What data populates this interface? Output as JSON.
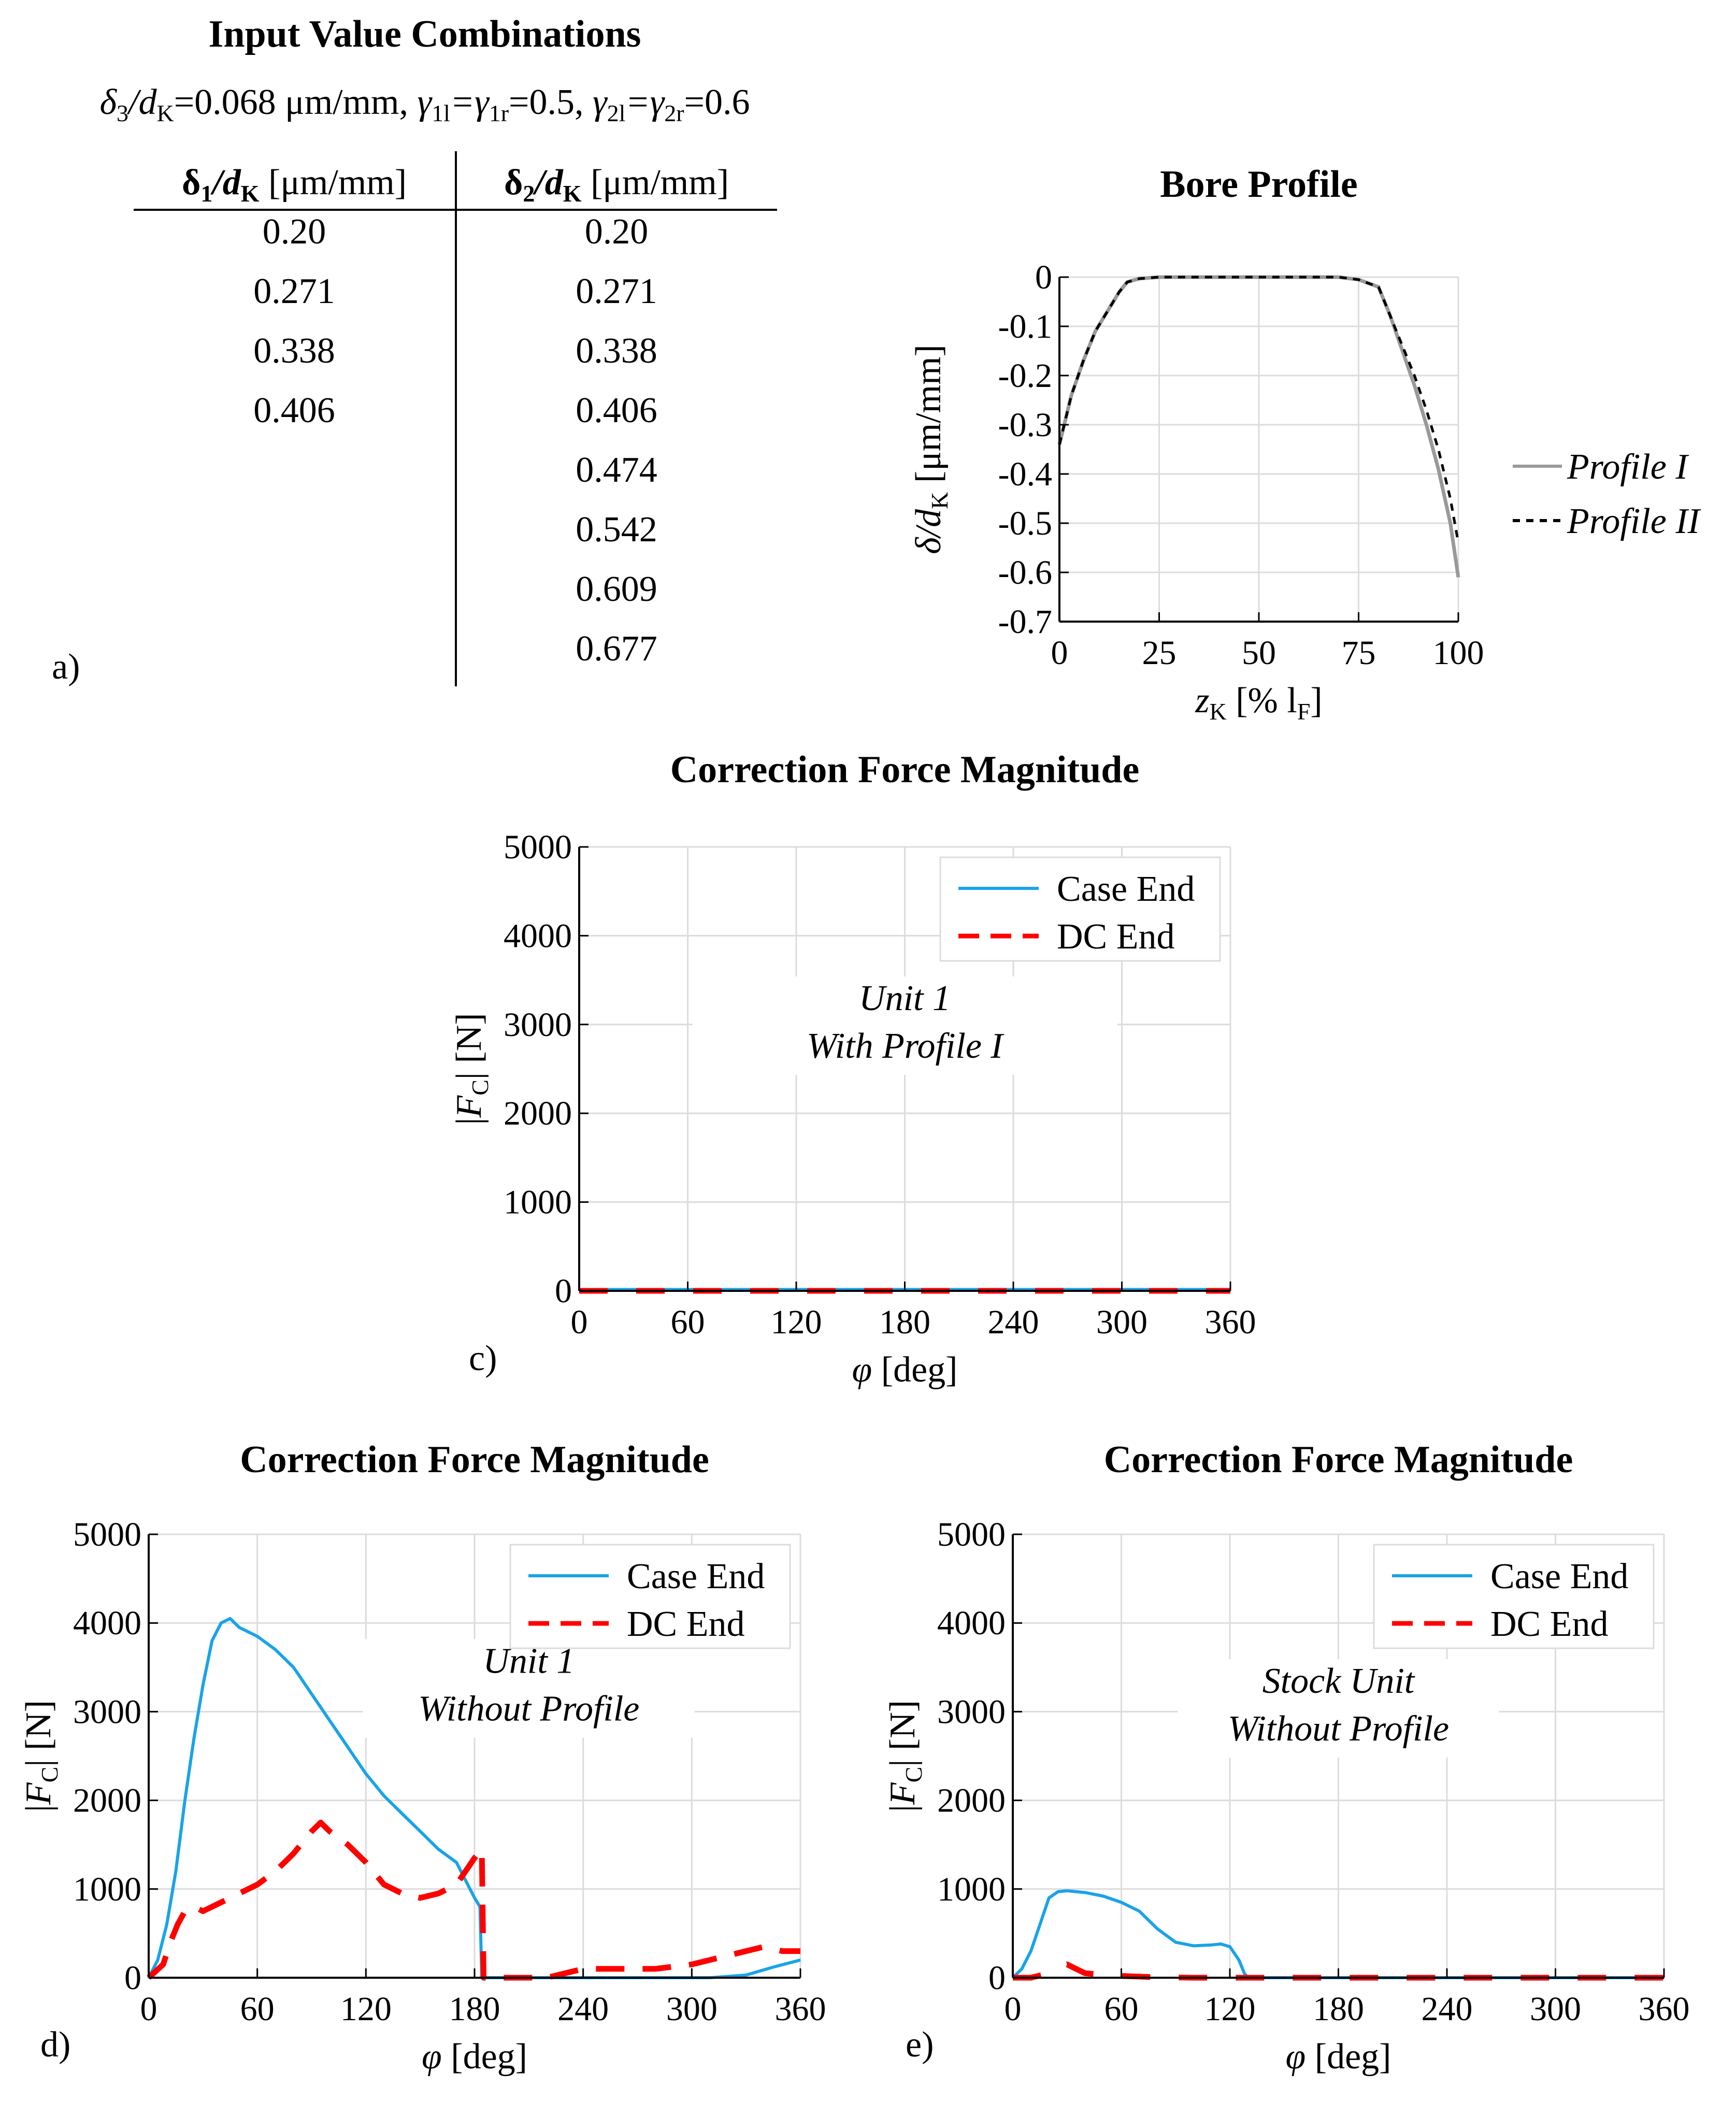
{
  "table": {
    "title": "Input Value Combinations",
    "params": {
      "d3_sym": "δ",
      "d3_sub": "3",
      "d3_mid": "/d",
      "d3_sub2": "K",
      "d3_val": "=0.068 μm/mm, ",
      "g1_a": "γ",
      "g1_a_sub": "1l",
      "g1_eq": "=γ",
      "g1_b_sub": "1r",
      "g1_val": "=0.5, ",
      "g2_a": "γ",
      "g2_a_sub": "2l",
      "g2_eq": "=γ",
      "g2_b_sub": "2r",
      "g2_val": "=0.6"
    },
    "col1_header": {
      "main": "δ",
      "sub": "1",
      "mid": "/d",
      "sub2": "K",
      "unit": " [μm/mm]"
    },
    "col2_header": {
      "main": "δ",
      "sub": "2",
      "mid": "/d",
      "sub2": "K",
      "unit": " [μm/mm]"
    },
    "col1": [
      "0.20",
      "0.271",
      "0.338",
      "0.406"
    ],
    "col2": [
      "0.20",
      "0.271",
      "0.338",
      "0.406",
      "0.474",
      "0.542",
      "0.609",
      "0.677"
    ],
    "panel_label": "a)"
  },
  "chart_data": [
    {
      "id": "bore",
      "type": "line",
      "title": "Bore Profile",
      "xlabel": {
        "main": "z",
        "sub": "K",
        "rest": " [% l",
        "sub2": "F",
        "end": "]"
      },
      "ylabel": {
        "main": "δ/d",
        "sub": "K",
        "rest": " [μm/mm]"
      },
      "xlim": [
        0,
        100
      ],
      "ylim": [
        -0.7,
        0
      ],
      "xticks": [
        0,
        25,
        50,
        75,
        100
      ],
      "yticks": [
        0,
        -0.1,
        -0.2,
        -0.3,
        -0.4,
        -0.5,
        -0.6,
        -0.7
      ],
      "series": [
        {
          "name": "Profile I",
          "color": "#999999",
          "dash": "solid",
          "x": [
            0,
            3,
            6,
            9,
            12,
            15,
            17,
            20,
            25,
            30,
            50,
            70,
            75,
            80,
            83,
            86,
            89,
            92,
            95,
            98,
            100
          ],
          "y": [
            -0.34,
            -0.24,
            -0.17,
            -0.11,
            -0.07,
            -0.03,
            -0.01,
            -0.003,
            0,
            0,
            0,
            0,
            -0.005,
            -0.02,
            -0.08,
            -0.15,
            -0.22,
            -0.3,
            -0.39,
            -0.5,
            -0.61
          ]
        },
        {
          "name": "Profile II",
          "color": "#000000",
          "dash": "dashed",
          "x": [
            0,
            3,
            6,
            9,
            12,
            15,
            17,
            20,
            25,
            30,
            50,
            70,
            75,
            80,
            83,
            86,
            89,
            92,
            95,
            98,
            100
          ],
          "y": [
            -0.34,
            -0.24,
            -0.17,
            -0.11,
            -0.07,
            -0.03,
            -0.01,
            -0.003,
            0,
            0,
            0,
            0,
            -0.005,
            -0.02,
            -0.08,
            -0.14,
            -0.2,
            -0.27,
            -0.35,
            -0.45,
            -0.54
          ]
        }
      ]
    },
    {
      "id": "c",
      "type": "line",
      "title": "Correction Force Magnitude",
      "xlabel": "φ [deg]",
      "ylabel": {
        "main": "|F",
        "sub": "C",
        "rest": "| [N]"
      },
      "xlim": [
        0,
        360
      ],
      "ylim": [
        0,
        5000
      ],
      "xticks": [
        0,
        60,
        120,
        180,
        240,
        300,
        360
      ],
      "yticks": [
        0,
        1000,
        2000,
        3000,
        4000,
        5000
      ],
      "annotation": [
        "Unit 1",
        "With Profile I"
      ],
      "panel_label": "c)",
      "series": [
        {
          "name": "Case End",
          "color": "#1AA3E8",
          "dash": "solid",
          "x": [
            0,
            360
          ],
          "y": [
            15,
            15
          ]
        },
        {
          "name": "DC End",
          "color": "#FF0000",
          "dash": "dashed",
          "x": [
            0,
            360
          ],
          "y": [
            0,
            0
          ]
        }
      ]
    },
    {
      "id": "d",
      "type": "line",
      "title": "Correction Force Magnitude",
      "xlabel": "φ [deg]",
      "ylabel": {
        "main": "|F",
        "sub": "C",
        "rest": "| [N]"
      },
      "xlim": [
        0,
        360
      ],
      "ylim": [
        0,
        5000
      ],
      "xticks": [
        0,
        60,
        120,
        180,
        240,
        300,
        360
      ],
      "yticks": [
        0,
        1000,
        2000,
        3000,
        4000,
        5000
      ],
      "annotation": [
        "Unit 1",
        "Without Profile"
      ],
      "panel_label": "d)",
      "series": [
        {
          "name": "Case End",
          "color": "#1AA3E8",
          "dash": "solid",
          "x": [
            0,
            5,
            10,
            15,
            20,
            25,
            30,
            35,
            40,
            45,
            50,
            55,
            60,
            70,
            80,
            90,
            100,
            110,
            120,
            130,
            140,
            150,
            160,
            170,
            175,
            180,
            183,
            184,
            200,
            240,
            280,
            310,
            330,
            345,
            360
          ],
          "y": [
            0,
            200,
            600,
            1200,
            2000,
            2700,
            3300,
            3800,
            4000,
            4050,
            3950,
            3900,
            3850,
            3700,
            3500,
            3200,
            2900,
            2600,
            2300,
            2050,
            1850,
            1650,
            1450,
            1300,
            1100,
            900,
            800,
            0,
            0,
            0,
            0,
            0,
            30,
            120,
            200
          ]
        },
        {
          "name": "DC End",
          "color": "#FF0000",
          "dash": "dashed",
          "x": [
            0,
            8,
            12,
            16,
            20,
            25,
            30,
            40,
            50,
            60,
            70,
            80,
            90,
            95,
            100,
            110,
            120,
            130,
            140,
            150,
            160,
            170,
            175,
            180,
            184,
            185,
            200,
            220,
            240,
            260,
            280,
            300,
            320,
            340,
            350,
            360
          ],
          "y": [
            0,
            150,
            400,
            600,
            750,
            800,
            750,
            850,
            950,
            1050,
            1200,
            1400,
            1650,
            1750,
            1650,
            1500,
            1300,
            1050,
            950,
            900,
            950,
            1050,
            1200,
            1350,
            1450,
            0,
            0,
            0,
            100,
            100,
            100,
            150,
            250,
            350,
            300,
            300
          ]
        }
      ]
    },
    {
      "id": "e",
      "type": "line",
      "title": "Correction Force Magnitude",
      "xlabel": "φ [deg]",
      "ylabel": {
        "main": "|F",
        "sub": "C",
        "rest": "| [N]"
      },
      "xlim": [
        0,
        360
      ],
      "ylim": [
        0,
        5000
      ],
      "xticks": [
        0,
        60,
        120,
        180,
        240,
        300,
        360
      ],
      "yticks": [
        0,
        1000,
        2000,
        3000,
        4000,
        5000
      ],
      "annotation": [
        "Stock Unit",
        "Without Profile"
      ],
      "panel_label": "e)",
      "series": [
        {
          "name": "Case End",
          "color": "#1AA3E8",
          "dash": "solid",
          "x": [
            0,
            5,
            10,
            15,
            20,
            25,
            30,
            40,
            50,
            60,
            70,
            80,
            90,
            100,
            110,
            115,
            120,
            125,
            128,
            130,
            360
          ],
          "y": [
            0,
            100,
            300,
            600,
            900,
            970,
            980,
            960,
            920,
            850,
            750,
            550,
            400,
            360,
            370,
            380,
            350,
            200,
            50,
            0,
            0
          ]
        },
        {
          "name": "DC End",
          "color": "#FF0000",
          "dash": "dashed",
          "x": [
            0,
            10,
            20,
            25,
            30,
            35,
            40,
            60,
            80,
            100,
            360
          ],
          "y": [
            0,
            0,
            50,
            120,
            150,
            100,
            50,
            20,
            5,
            0,
            0
          ]
        }
      ]
    }
  ]
}
